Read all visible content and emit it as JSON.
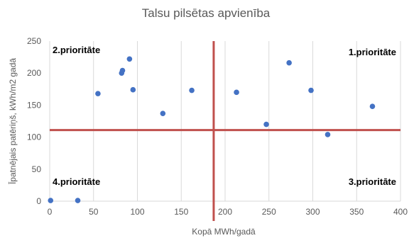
{
  "chart_data": {
    "type": "scatter",
    "title": "Talsu pilsētas apvienība",
    "xlabel": "Kopā MWh/gadā",
    "ylabel": "Īpatnējais patēriņš, kWh/m2 gadā",
    "xlim": [
      0,
      400
    ],
    "ylim": [
      0,
      250
    ],
    "x_ticks": [
      0,
      50,
      100,
      150,
      200,
      250,
      300,
      350,
      400
    ],
    "y_ticks": [
      0,
      50,
      100,
      150,
      200,
      250
    ],
    "grid": "vertical",
    "series": [
      {
        "color": "#4472c4",
        "points": [
          {
            "x": 1,
            "y": 1
          },
          {
            "x": 32,
            "y": 1
          },
          {
            "x": 55,
            "y": 168
          },
          {
            "x": 82,
            "y": 200
          },
          {
            "x": 83,
            "y": 204
          },
          {
            "x": 91,
            "y": 222
          },
          {
            "x": 95,
            "y": 174
          },
          {
            "x": 129,
            "y": 137
          },
          {
            "x": 162,
            "y": 173
          },
          {
            "x": 213,
            "y": 170
          },
          {
            "x": 247,
            "y": 120
          },
          {
            "x": 273,
            "y": 216
          },
          {
            "x": 298,
            "y": 173
          },
          {
            "x": 317,
            "y": 104
          },
          {
            "x": 368,
            "y": 148
          }
        ]
      }
    ],
    "reference_lines": [
      {
        "axis": "x",
        "value": 187,
        "color": "#c0504d"
      },
      {
        "axis": "y",
        "value": 111,
        "color": "#c0504d"
      }
    ],
    "annotations": {
      "top_left": "2.prioritāte",
      "top_right": "1.prioritāte",
      "bottom_left": "4.prioritāte",
      "bottom_right": "3.prioritāte"
    }
  }
}
